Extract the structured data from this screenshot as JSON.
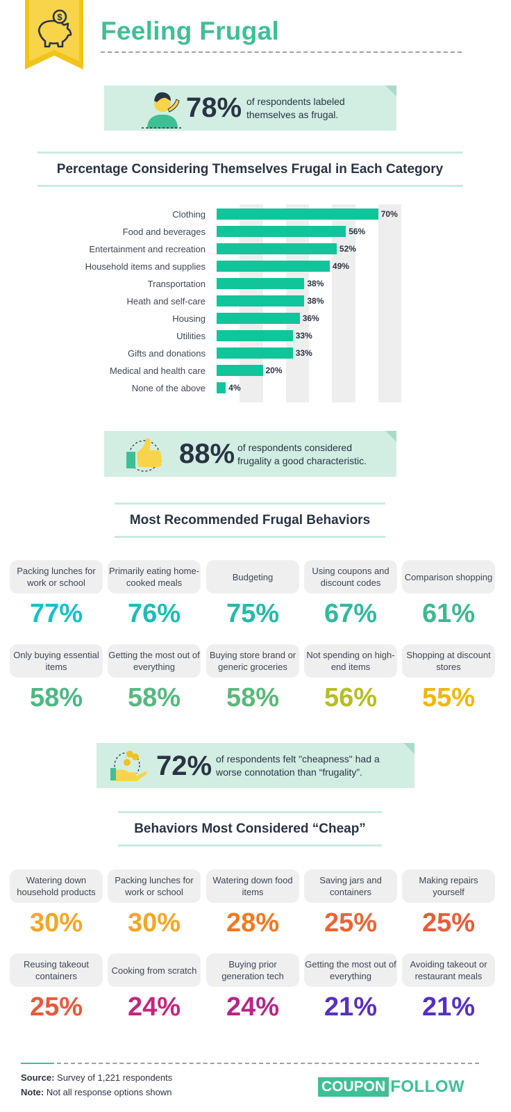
{
  "header": {
    "title": "Feeling Frugal"
  },
  "stats": [
    {
      "pct": "78%",
      "text1": "of respondents labeled",
      "text2": "themselves as frugal."
    },
    {
      "pct": "88%",
      "text1": "of respondents considered",
      "text2": "frugality a good characteristic."
    },
    {
      "pct": "72%",
      "text1": "of respondents felt \"cheapness\" had a",
      "text2": "worse connotation than “frugality”."
    }
  ],
  "sections": {
    "chart_title": "Percentage Considering Themselves Frugal in Each Category",
    "recommended_title": "Most Recommended Frugal Behaviors",
    "cheap_title": "Behaviors Most Considered “Cheap”"
  },
  "chart_data": {
    "type": "bar",
    "orientation": "horizontal",
    "title": "Percentage Considering Themselves Frugal in Each Category",
    "categories": [
      "Clothing",
      "Food and beverages",
      "Entertainment and recreation",
      "Household items and supplies",
      "Transportation",
      "Heath and self-care",
      "Housing",
      "Utilities",
      "Gifts and donations",
      "Medical and health care",
      "None of the above"
    ],
    "values": [
      70,
      56,
      52,
      49,
      38,
      38,
      36,
      33,
      33,
      20,
      4
    ],
    "value_labels": [
      "70%",
      "56%",
      "52%",
      "49%",
      "38%",
      "38%",
      "36%",
      "33%",
      "33%",
      "20%",
      "4%"
    ],
    "xlim": [
      0,
      80
    ],
    "grid": true,
    "bar_color": "#12c49a",
    "grid_color": "#eeeeee"
  },
  "recommended": [
    {
      "label": "Packing lunches for work or school",
      "pct": "77%",
      "color": "#15bfcf"
    },
    {
      "label": "Primarily eating home-cooked meals",
      "pct": "76%",
      "color": "#1bbdb6"
    },
    {
      "label": "Budgeting",
      "pct": "75%",
      "color": "#22bba8"
    },
    {
      "label": "Using coupons and discount codes",
      "pct": "67%",
      "color": "#32b99c"
    },
    {
      "label": "Comparison shopping",
      "pct": "61%",
      "color": "#3cb98e"
    },
    {
      "label": "Only buying essential items",
      "pct": "58%",
      "color": "#4cb883"
    },
    {
      "label": "Getting the most out of everything",
      "pct": "58%",
      "color": "#55b97e"
    },
    {
      "label": "Buying store brand or generic groceries",
      "pct": "58%",
      "color": "#5ab978"
    },
    {
      "label": "Not spending on high-end items",
      "pct": "56%",
      "color": "#b6be22"
    },
    {
      "label": "Shopping at discount stores",
      "pct": "55%",
      "color": "#efb700"
    }
  ],
  "cheap": [
    {
      "label": "Watering down household products",
      "pct": "30%",
      "color": "#f5a623"
    },
    {
      "label": "Packing lunches for work or school",
      "pct": "30%",
      "color": "#f5a623"
    },
    {
      "label": "Watering down food items",
      "pct": "28%",
      "color": "#f2781e"
    },
    {
      "label": "Saving jars and containers",
      "pct": "25%",
      "color": "#ec6434"
    },
    {
      "label": "Making repairs yourself",
      "pct": "25%",
      "color": "#ec5a36"
    },
    {
      "label": "Reusing takeout containers",
      "pct": "25%",
      "color": "#e8593b"
    },
    {
      "label": "Cooking from scratch",
      "pct": "24%",
      "color": "#c8257a"
    },
    {
      "label": "Buying prior generation tech",
      "pct": "24%",
      "color": "#b8248a"
    },
    {
      "label": "Getting the most out of everything",
      "pct": "21%",
      "color": "#5a2fc2"
    },
    {
      "label": "Avoiding takeout or restaurant meals",
      "pct": "21%",
      "color": "#5530c6"
    }
  ],
  "footer": {
    "source_label": "Source:",
    "source_text": "Survey of 1,221 respondents",
    "note_label": "Note:",
    "note_text": "Not all response options shown",
    "brand_part1": "COUPON",
    "brand_part2": "FOLLOW"
  },
  "colors": {
    "brand_green": "#3fbf95",
    "callout_bg": "#d2eee3",
    "ribbon_yellow": "#f2c318"
  }
}
